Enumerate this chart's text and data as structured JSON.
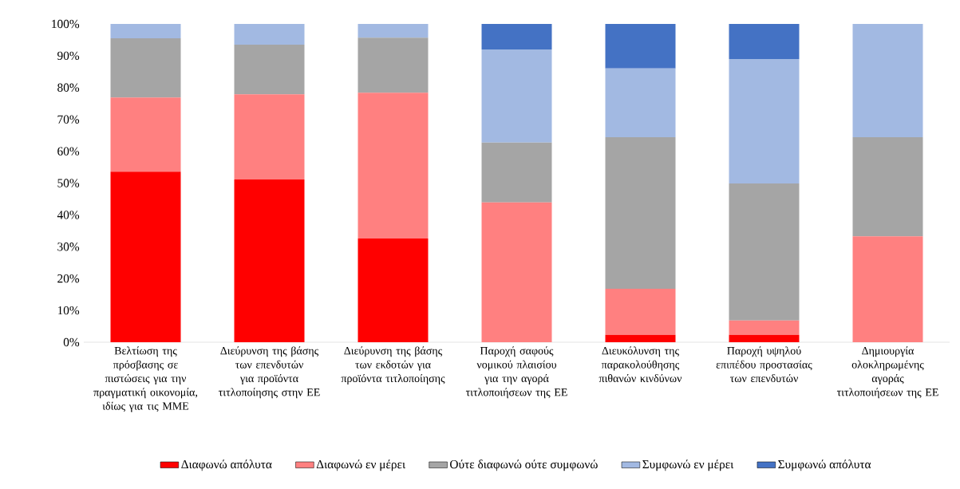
{
  "chart_data": {
    "type": "bar",
    "stacked": true,
    "categories": [
      "Βελτίωση της πρόσβασης σε πιστώσεις για την πραγματική οικονομία, ιδίως για τις ΜΜΕ",
      "Διεύρυνση της βάσης των επενδυτών για προϊόντα τιτλοποίησης στην ΕΕ",
      "Διεύρυνση της βάσης των εκδοτών για προϊόντα τιτλοποίησης",
      "Παροχή σαφούς νομικού πλαισίου για την αγορά τιτλοποιήσεων της ΕΕ",
      "Διευκόλυνση της παρακολούθησης πιθανών κινδύνων",
      "Παροχή υψηλού επιπέδου προστασίας των επενδυτών",
      "Δημιουργία ολοκληρωμένης αγοράς τιτλοποιήσεων της ΕΕ"
    ],
    "series": [
      {
        "name": "Διαφωνώ απόλυτα",
        "color": "#ff0000",
        "values": [
          53.6,
          51.1,
          32.6,
          0,
          2.3,
          2.3,
          0
        ]
      },
      {
        "name": "Διαφωνώ εν μέρει",
        "color": "#ff8080",
        "values": [
          23.3,
          26.8,
          45.8,
          43.9,
          14.5,
          4.5,
          33.3
        ]
      },
      {
        "name": "Ούτε διαφωνώ ούτε συμφωνώ",
        "color": "#a5a5a5",
        "values": [
          18.6,
          15.6,
          17.3,
          18.8,
          47.6,
          43.1,
          31.1
        ]
      },
      {
        "name": "Συμφωνώ εν μέρει",
        "color": "#a2b9e2",
        "values": [
          4.5,
          6.5,
          4.3,
          29.3,
          21.6,
          39.1,
          35.6
        ]
      },
      {
        "name": "Συμφωνώ απόλυτα",
        "color": "#4472c4",
        "values": [
          0,
          0,
          0,
          8.0,
          14.0,
          11.0,
          0
        ]
      }
    ],
    "ylim": [
      0,
      100
    ],
    "yticks": [
      {
        "value": 0,
        "label": "0%"
      },
      {
        "value": 10,
        "label": "10%"
      },
      {
        "value": 20,
        "label": "20%"
      },
      {
        "value": 30,
        "label": "30%"
      },
      {
        "value": 40,
        "label": "40%"
      },
      {
        "value": 50,
        "label": "50%"
      },
      {
        "value": 60,
        "label": "60%"
      },
      {
        "value": 70,
        "label": "70%"
      },
      {
        "value": 80,
        "label": "80%"
      },
      {
        "value": 90,
        "label": "90%"
      },
      {
        "value": 100,
        "label": "100%"
      }
    ],
    "legend": "bottom"
  }
}
